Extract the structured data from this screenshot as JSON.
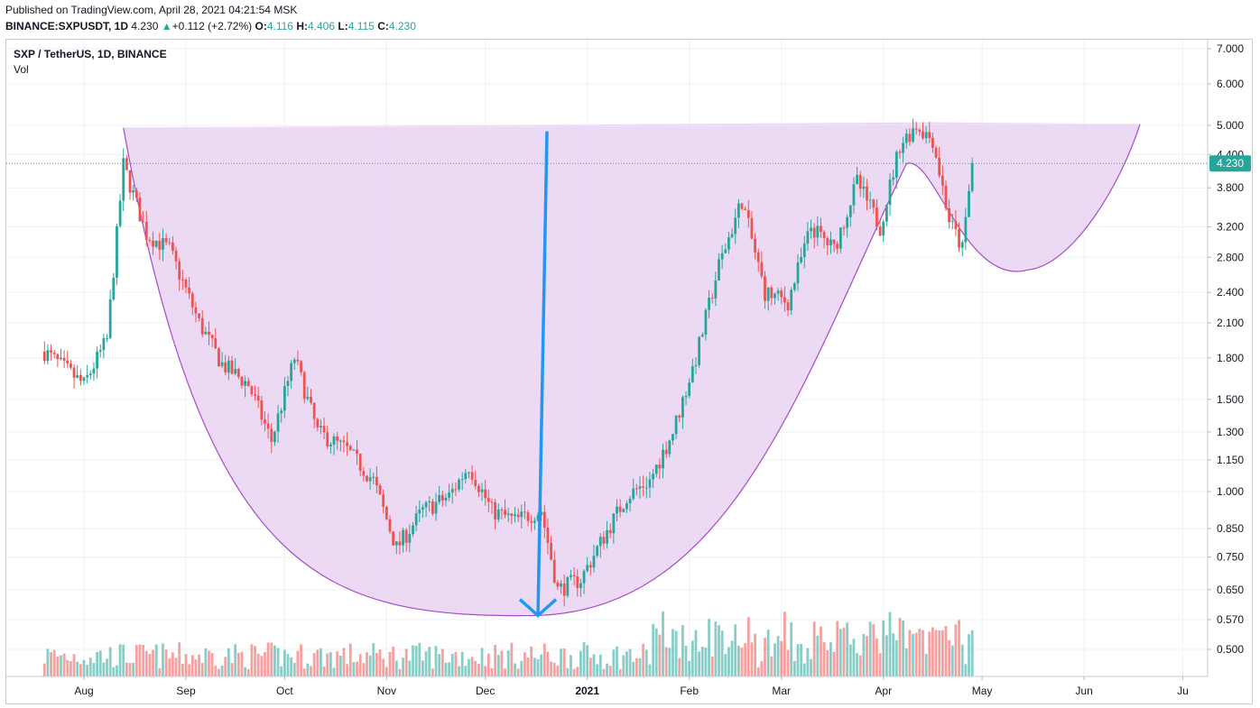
{
  "header": {
    "published": "Published on TradingView.com, April 28, 2021 04:21:54 MSK",
    "symbol": "BINANCE:SXPUSDT, 1D",
    "last": "4.230",
    "change": "+0.112 (+2.72%)",
    "o_label": "O:",
    "o_value": "4.116",
    "h_label": "H:",
    "h_value": "4.406",
    "l_label": "L:",
    "l_value": "4.115",
    "c_label": "C:",
    "c_value": "4.230"
  },
  "legend": {
    "title": "SXP / TetherUS, 1D, BINANCE",
    "vol": "Vol"
  },
  "colors": {
    "up": "#26a69a",
    "down": "#ef5350",
    "cup_fill": "#e6cdf0",
    "cup_line": "#a64ac9",
    "arrow": "#2196f3",
    "price_tag": "#26a69a",
    "grid": "#eef0f3"
  },
  "chart_data": {
    "type": "candlestick",
    "scale": "log",
    "yticks": [
      "7.000",
      "6.000",
      "5.000",
      "4.400",
      "3.800",
      "3.200",
      "2.800",
      "2.400",
      "2.100",
      "1.800",
      "1.500",
      "1.300",
      "1.150",
      "1.000",
      "0.850",
      "0.750",
      "0.650",
      "0.570",
      "0.500"
    ],
    "xticks": [
      "Aug",
      "Sep",
      "Oct",
      "Nov",
      "Dec",
      "2021",
      "Feb",
      "Mar",
      "Apr",
      "May",
      "Jun",
      "Ju"
    ],
    "last_price_label": "4.230",
    "last_price": 4.23,
    "series": [
      {
        "name": "SXP / TetherUS",
        "approx_path": [
          [
            "2020-07-20",
            1.85
          ],
          [
            "2020-08-01",
            1.6
          ],
          [
            "2020-08-08",
            1.95
          ],
          [
            "2020-08-13",
            4.2
          ],
          [
            "2020-08-20",
            3.1
          ],
          [
            "2020-08-27",
            2.9
          ],
          [
            "2020-09-05",
            2.1
          ],
          [
            "2020-09-12",
            1.75
          ],
          [
            "2020-09-20",
            1.6
          ],
          [
            "2020-09-27",
            1.25
          ],
          [
            "2020-10-04",
            1.8
          ],
          [
            "2020-10-11",
            1.3
          ],
          [
            "2020-10-20",
            1.2
          ],
          [
            "2020-10-28",
            1.05
          ],
          [
            "2020-11-04",
            0.78
          ],
          [
            "2020-11-12",
            0.92
          ],
          [
            "2020-11-20",
            0.98
          ],
          [
            "2020-11-26",
            1.12
          ],
          [
            "2020-12-03",
            0.92
          ],
          [
            "2020-12-10",
            0.88
          ],
          [
            "2020-12-18",
            0.92
          ],
          [
            "2020-12-23",
            0.65
          ],
          [
            "2020-12-30",
            0.68
          ],
          [
            "2021-01-06",
            0.82
          ],
          [
            "2021-01-13",
            0.98
          ],
          [
            "2021-01-20",
            1.05
          ],
          [
            "2021-01-27",
            1.3
          ],
          [
            "2021-02-03",
            1.8
          ],
          [
            "2021-02-10",
            2.7
          ],
          [
            "2021-02-17",
            3.6
          ],
          [
            "2021-02-24",
            2.4
          ],
          [
            "2021-03-03",
            2.3
          ],
          [
            "2021-03-10",
            3.2
          ],
          [
            "2021-03-17",
            2.9
          ],
          [
            "2021-03-24",
            3.9
          ],
          [
            "2021-03-31",
            3.2
          ],
          [
            "2021-04-06",
            4.6
          ],
          [
            "2021-04-11",
            5.0
          ],
          [
            "2021-04-16",
            4.7
          ],
          [
            "2021-04-21",
            3.3
          ],
          [
            "2021-04-25",
            2.9
          ],
          [
            "2021-04-28",
            4.23
          ]
        ]
      }
    ],
    "annotations": {
      "cup_rim": 4.95,
      "cup_bottom": 0.58,
      "handle_bottom": 2.65
    }
  }
}
